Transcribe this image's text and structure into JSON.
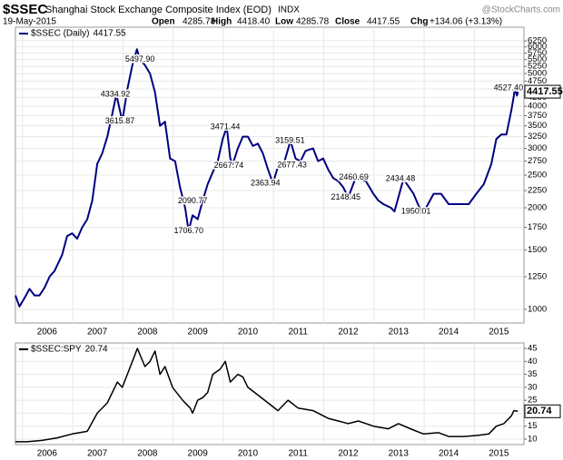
{
  "header": {
    "symbol": "$SSEC",
    "name": "Shanghai Stock Exchange Composite Index (EOD)",
    "exchange": "INDX",
    "source": "@StockCharts.com",
    "date": "19-May-2015",
    "quote": [
      {
        "label": "Open",
        "value": "4285.78"
      },
      {
        "label": "High",
        "value": "4418.40"
      },
      {
        "label": "Low",
        "value": "4285.78"
      },
      {
        "label": "Close",
        "value": "4417.55"
      },
      {
        "label": "Chg",
        "value": "+134.06 (+3.13%)"
      }
    ]
  },
  "chart_data": [
    {
      "type": "line",
      "log_scale": true,
      "grid": true,
      "x": [
        2005.37,
        2005.45,
        2005.55,
        2005.65,
        2005.75,
        2005.85,
        2005.95,
        2006.05,
        2006.15,
        2006.3,
        2006.4,
        2006.5,
        2006.6,
        2006.7,
        2006.8,
        2006.9,
        2007.0,
        2007.1,
        2007.2,
        2007.3,
        2007.38,
        2007.5,
        2007.6,
        2007.7,
        2007.79,
        2007.85,
        2007.95,
        2008.05,
        2008.15,
        2008.25,
        2008.35,
        2008.45,
        2008.55,
        2008.65,
        2008.75,
        2008.82,
        2008.9,
        2009.0,
        2009.1,
        2009.2,
        2009.3,
        2009.4,
        2009.5,
        2009.58,
        2009.65,
        2009.7,
        2009.8,
        2009.9,
        2010.0,
        2010.1,
        2010.2,
        2010.3,
        2010.4,
        2010.5,
        2010.6,
        2010.7,
        2010.85,
        2010.95,
        2011.05,
        2011.15,
        2011.3,
        2011.4,
        2011.5,
        2011.6,
        2011.7,
        2011.8,
        2011.9,
        2012.0,
        2012.15,
        2012.35,
        2012.5,
        2012.6,
        2012.7,
        2012.85,
        2012.92,
        2013.1,
        2013.3,
        2013.45,
        2013.55,
        2013.7,
        2013.85,
        2014.0,
        2014.2,
        2014.4,
        2014.55,
        2014.7,
        2014.85,
        2014.95,
        2015.05,
        2015.15,
        2015.25,
        2015.3,
        2015.32,
        2015.36,
        2015.38
      ],
      "series": [
        {
          "name": "$SSEC (Daily)",
          "color": "#000080",
          "last_value": 4417.55,
          "values": [
            1100,
            1020,
            1080,
            1150,
            1100,
            1100,
            1160,
            1250,
            1300,
            1450,
            1650,
            1680,
            1620,
            1750,
            1850,
            2100,
            2700,
            2900,
            3250,
            3800,
            4334.92,
            3615.87,
            4500,
            5300,
            5900,
            5500,
            5300,
            5000,
            4400,
            3500,
            3600,
            2800,
            2750,
            2300,
            2000,
            1706.7,
            1900,
            1850,
            2100,
            2350,
            2550,
            2750,
            3200,
            3471.44,
            2800,
            2700,
            3000,
            3250,
            3250,
            3050,
            3100,
            2900,
            2600,
            2363.94,
            2650,
            2650,
            3159.51,
            2800,
            2750,
            2950,
            3000,
            2750,
            2800,
            2600,
            2450,
            2400,
            2300,
            2148.45,
            2460.69,
            2400,
            2200,
            2100,
            2050,
            2000,
            1950.01,
            2434.48,
            2200,
            1950,
            2000,
            2200,
            2200,
            2050,
            2050,
            2050,
            2200,
            2350,
            2700,
            3200,
            3300,
            3300,
            3900,
            4300,
            4527.4,
            4300,
            4417.55
          ]
        }
      ],
      "annotations": [
        {
          "x": 2007.85,
          "value": 5497.9,
          "label": "5497.90"
        },
        {
          "x": 2007.36,
          "value": 4334.92,
          "label": "4334.92"
        },
        {
          "x": 2007.45,
          "value": 3615.87,
          "label": "3615.87"
        },
        {
          "x": 2008.9,
          "value": 2090.77,
          "label": "2090.77"
        },
        {
          "x": 2008.82,
          "value": 1706.7,
          "label": "1706.70"
        },
        {
          "x": 2009.55,
          "value": 3471.44,
          "label": "3471.44"
        },
        {
          "x": 2009.62,
          "value": 2667.74,
          "label": "2667.74"
        },
        {
          "x": 2010.35,
          "value": 2363.94,
          "label": "2363.94"
        },
        {
          "x": 2010.84,
          "value": 3159.51,
          "label": "3159.51"
        },
        {
          "x": 2010.88,
          "value": 2677.43,
          "label": "2677.43"
        },
        {
          "x": 2012.11,
          "value": 2460.69,
          "label": "2460.69"
        },
        {
          "x": 2011.95,
          "value": 2148.45,
          "label": "2148.45"
        },
        {
          "x": 2013.04,
          "value": 2434.48,
          "label": "2434.48"
        },
        {
          "x": 2013.35,
          "value": 1950.01,
          "label": "1950.01"
        },
        {
          "x": 2015.19,
          "value": 4527.4,
          "label": "4527.40"
        }
      ],
      "xlim": [
        2005.37,
        2015.5
      ],
      "xticks": [
        2006,
        2007,
        2008,
        2009,
        2010,
        2011,
        2012,
        2013,
        2014,
        2015
      ],
      "ylim": [
        911,
        6860
      ],
      "yticks": [
        1000,
        1250,
        1500,
        1750,
        2000,
        2250,
        2500,
        2750,
        3000,
        3250,
        3500,
        3750,
        4000,
        4250,
        4500,
        4750,
        5000,
        5250,
        5500,
        5750,
        6000,
        6250
      ]
    },
    {
      "type": "line",
      "log_scale": false,
      "grid": true,
      "x": [
        2005.37,
        2005.6,
        2005.9,
        2006.2,
        2006.5,
        2006.8,
        2007.0,
        2007.2,
        2007.4,
        2007.5,
        2007.7,
        2007.8,
        2007.95,
        2008.05,
        2008.15,
        2008.25,
        2008.35,
        2008.5,
        2008.7,
        2008.85,
        2008.9,
        2009.0,
        2009.1,
        2009.2,
        2009.3,
        2009.45,
        2009.55,
        2009.65,
        2009.8,
        2009.9,
        2010.0,
        2010.2,
        2010.4,
        2010.6,
        2010.8,
        2011.0,
        2011.3,
        2011.6,
        2011.8,
        2012.0,
        2012.2,
        2012.5,
        2012.8,
        2013.0,
        2013.3,
        2013.5,
        2013.8,
        2014.0,
        2014.3,
        2014.6,
        2014.8,
        2014.95,
        2015.1,
        2015.25,
        2015.3,
        2015.38
      ],
      "series": [
        {
          "name": "$SSEC:SPY",
          "color": "#000000",
          "last_value": 20.74,
          "values": [
            9,
            9,
            9.5,
            10.5,
            12,
            13,
            20,
            24,
            32,
            30,
            40,
            45,
            38,
            40,
            44,
            35,
            38,
            30,
            25,
            22,
            20,
            25,
            26,
            28,
            35,
            37,
            40,
            32,
            35,
            34,
            30,
            27,
            24,
            21,
            25,
            22,
            21,
            18,
            17,
            16,
            17,
            15,
            14,
            16,
            13.5,
            12,
            12.5,
            11,
            11,
            11.5,
            12,
            15,
            16,
            19,
            21,
            20.74
          ]
        }
      ],
      "xlim": [
        2005.37,
        2015.5
      ],
      "xticks": [
        2006,
        2007,
        2008,
        2009,
        2010,
        2011,
        2012,
        2013,
        2014,
        2015
      ],
      "ylim": [
        7.9,
        47.1
      ],
      "yticks": [
        10,
        15,
        20,
        25,
        30,
        35,
        40,
        45
      ]
    }
  ]
}
